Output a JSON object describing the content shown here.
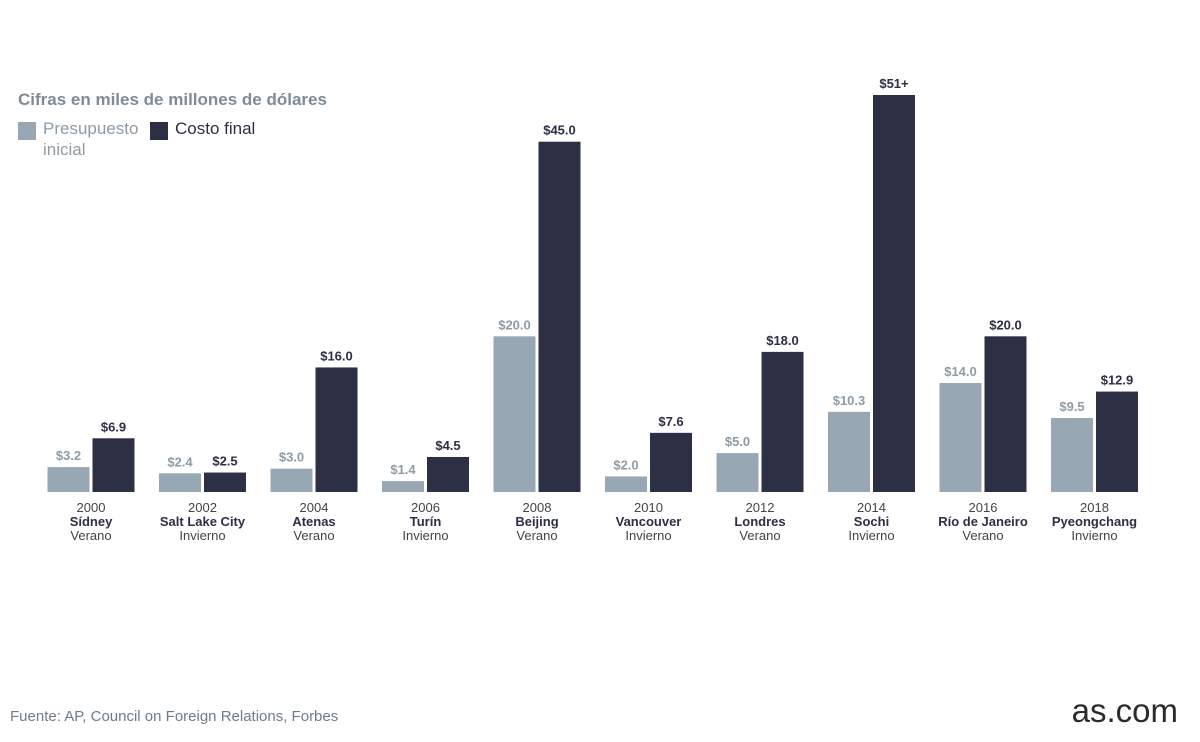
{
  "subtitle": "Cifras en miles de millones de dólares",
  "legend": {
    "budget_label": "Presupuesto inicial",
    "final_label": "Costo final"
  },
  "source": "Fuente: AP, Council on Foreign Relations, Forbes",
  "brand": "as.com",
  "colors": {
    "budget": "#97a8b4",
    "final": "#2d2f45",
    "budget_label": "#8e9ca6",
    "final_label": "#2d2f45",
    "axis_text": "#444444"
  },
  "chart_data": {
    "type": "bar",
    "title": "",
    "xlabel": "",
    "ylabel": "",
    "ylim": [
      0,
      51
    ],
    "categories": [
      {
        "year": "2000",
        "city": "Sídney",
        "season": "Verano"
      },
      {
        "year": "2002",
        "city": "Salt Lake City",
        "season": "Invierno"
      },
      {
        "year": "2004",
        "city": "Atenas",
        "season": "Verano"
      },
      {
        "year": "2006",
        "city": "Turín",
        "season": "Invierno"
      },
      {
        "year": "2008",
        "city": "Beijing",
        "season": "Verano"
      },
      {
        "year": "2010",
        "city": "Vancouver",
        "season": "Invierno"
      },
      {
        "year": "2012",
        "city": "Londres",
        "season": "Verano"
      },
      {
        "year": "2014",
        "city": "Sochi",
        "season": "Invierno"
      },
      {
        "year": "2016",
        "city": "Río de Janeiro",
        "season": "Verano"
      },
      {
        "year": "2018",
        "city": "Pyeongchang",
        "season": "Invierno"
      }
    ],
    "series": [
      {
        "name": "Presupuesto inicial",
        "values": [
          3.2,
          2.4,
          3.0,
          1.4,
          20.0,
          2.0,
          5.0,
          10.3,
          14.0,
          9.5
        ],
        "labels": [
          "$3.2",
          "$2.4",
          "$3.0",
          "$1.4",
          "$20.0",
          "$2.0",
          "$5.0",
          "$10.3",
          "$14.0",
          "$9.5"
        ]
      },
      {
        "name": "Costo final",
        "values": [
          6.9,
          2.5,
          16.0,
          4.5,
          45.0,
          7.6,
          18.0,
          51,
          20.0,
          12.9
        ],
        "labels": [
          "$6.9",
          "$2.5",
          "$16.0",
          "$4.5",
          "$45.0",
          "$7.6",
          "$18.0",
          "$51+",
          "$20.0",
          "$12.9"
        ]
      }
    ],
    "legend": "top-left",
    "grid": false
  }
}
